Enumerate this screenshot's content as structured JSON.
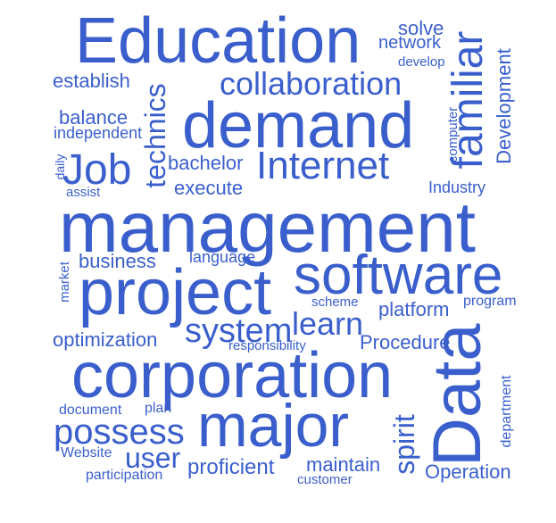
{
  "color": "#3a5fcd",
  "words": {
    "education": "Education",
    "solve": "solve",
    "network": "network",
    "develop": "develop",
    "familiar": "familiar",
    "development": "Development",
    "establish": "establish",
    "technics": "technics",
    "collaboration": "collaboration",
    "balance": "balance",
    "independent": "independent",
    "demand": "demand",
    "computer": "computer",
    "daily": "daily",
    "job": "Job",
    "bachelor": "bachelor",
    "internet": "Internet",
    "assist": "assist",
    "execute": "execute",
    "industry": "Industry",
    "management": "management",
    "market": "market",
    "business": "business",
    "language": "language",
    "project": "project",
    "software": "software",
    "scheme": "scheme",
    "program": "program",
    "platform": "platform",
    "system": "system",
    "learn": "learn",
    "optimization": "optimization",
    "responsibility": "responsibility",
    "procedure": "Procedure",
    "data": "Data",
    "corporation": "corporation",
    "department": "department",
    "document": "document",
    "plan": "plan",
    "major": "major",
    "spirit": "spirit",
    "possess": "possess",
    "website": "Website",
    "user": "user",
    "participation": "participation",
    "proficient": "proficient",
    "maintain": "maintain",
    "customer": "customer",
    "operation": "Operation"
  }
}
